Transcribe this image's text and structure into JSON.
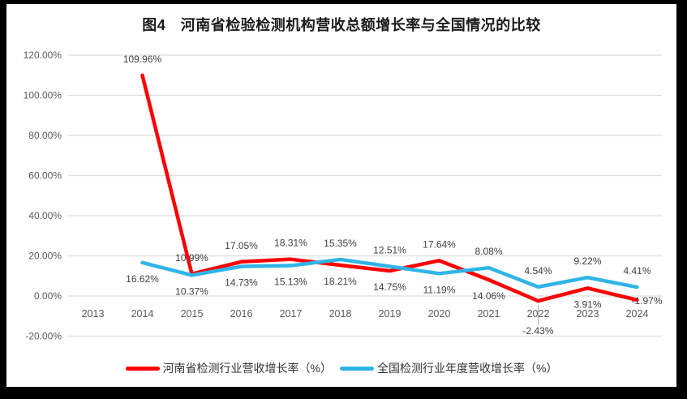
{
  "title": "图4　河南省检验检测机构营收总额增长率与全国情况的比较",
  "frame": {
    "border_color": "#000000",
    "chart_background": "#ffffff"
  },
  "legend": [
    {
      "label": "河南省检测行业营收增长率（%）",
      "color": "#fe0000"
    },
    {
      "label": "全国检测行业年度营收增长率（%）",
      "color": "#30b4e8"
    }
  ],
  "chart_data": {
    "type": "line",
    "title": "图4　河南省检验检测机构营收总额增长率与全国情况的比较",
    "x": [
      "2013",
      "2014",
      "2015",
      "2016",
      "2017",
      "2018",
      "2019",
      "2020",
      "2021",
      "2022",
      "2023",
      "2024"
    ],
    "xlabel": "",
    "ylabel": "",
    "ylim": [
      -20,
      120
    ],
    "grid": true,
    "legend_position": "bottom",
    "gridline_color": "#dcdcdc",
    "axis_text_color": "#595959",
    "data_label_color": "#3f3f3f",
    "y_ticks": [
      {
        "value": 120,
        "label": "120.00%"
      },
      {
        "value": 100,
        "label": "100.00%"
      },
      {
        "value": 80,
        "label": "80.00%"
      },
      {
        "value": 60,
        "label": "60.00%"
      },
      {
        "value": 40,
        "label": "40.00%"
      },
      {
        "value": 20,
        "label": "20.00%"
      },
      {
        "value": 0,
        "label": "0.00%"
      },
      {
        "value": -20,
        "label": "-20.00%"
      }
    ],
    "series": [
      {
        "name": "河南省检测行业营收增长率（%）",
        "color": "#fe0000",
        "values": [
          null,
          109.96,
          10.99,
          17.05,
          18.31,
          15.35,
          12.51,
          17.64,
          8.08,
          -2.43,
          3.91,
          -1.97
        ],
        "labels": [
          null,
          "109.96%",
          "10.99%",
          "17.05%",
          "18.31%",
          "15.35%",
          "12.51%",
          "17.64%",
          "8.08%",
          "-2.43%",
          "3.91%",
          "-1.97%"
        ],
        "label_placement": [
          null,
          "above",
          "above",
          "above",
          "above",
          "above",
          "above",
          "above",
          "above",
          "below-far",
          "below",
          "right"
        ]
      },
      {
        "name": "全国检测行业年度营收增长率（%）",
        "color": "#30b4e8",
        "values": [
          null,
          16.62,
          10.37,
          14.73,
          15.13,
          18.21,
          14.75,
          11.19,
          14.06,
          4.54,
          9.22,
          4.41
        ],
        "labels": [
          null,
          "16.62%",
          "10.37%",
          "14.73%",
          "15.13%",
          "18.21%",
          "14.75%",
          "11.19%",
          "14.06%",
          "4.54%",
          "9.22%",
          "4.41%"
        ],
        "label_placement": [
          null,
          "below",
          "below",
          "below",
          "below",
          "below",
          "below",
          "below",
          "below",
          "above",
          "above",
          "above"
        ]
      }
    ]
  }
}
